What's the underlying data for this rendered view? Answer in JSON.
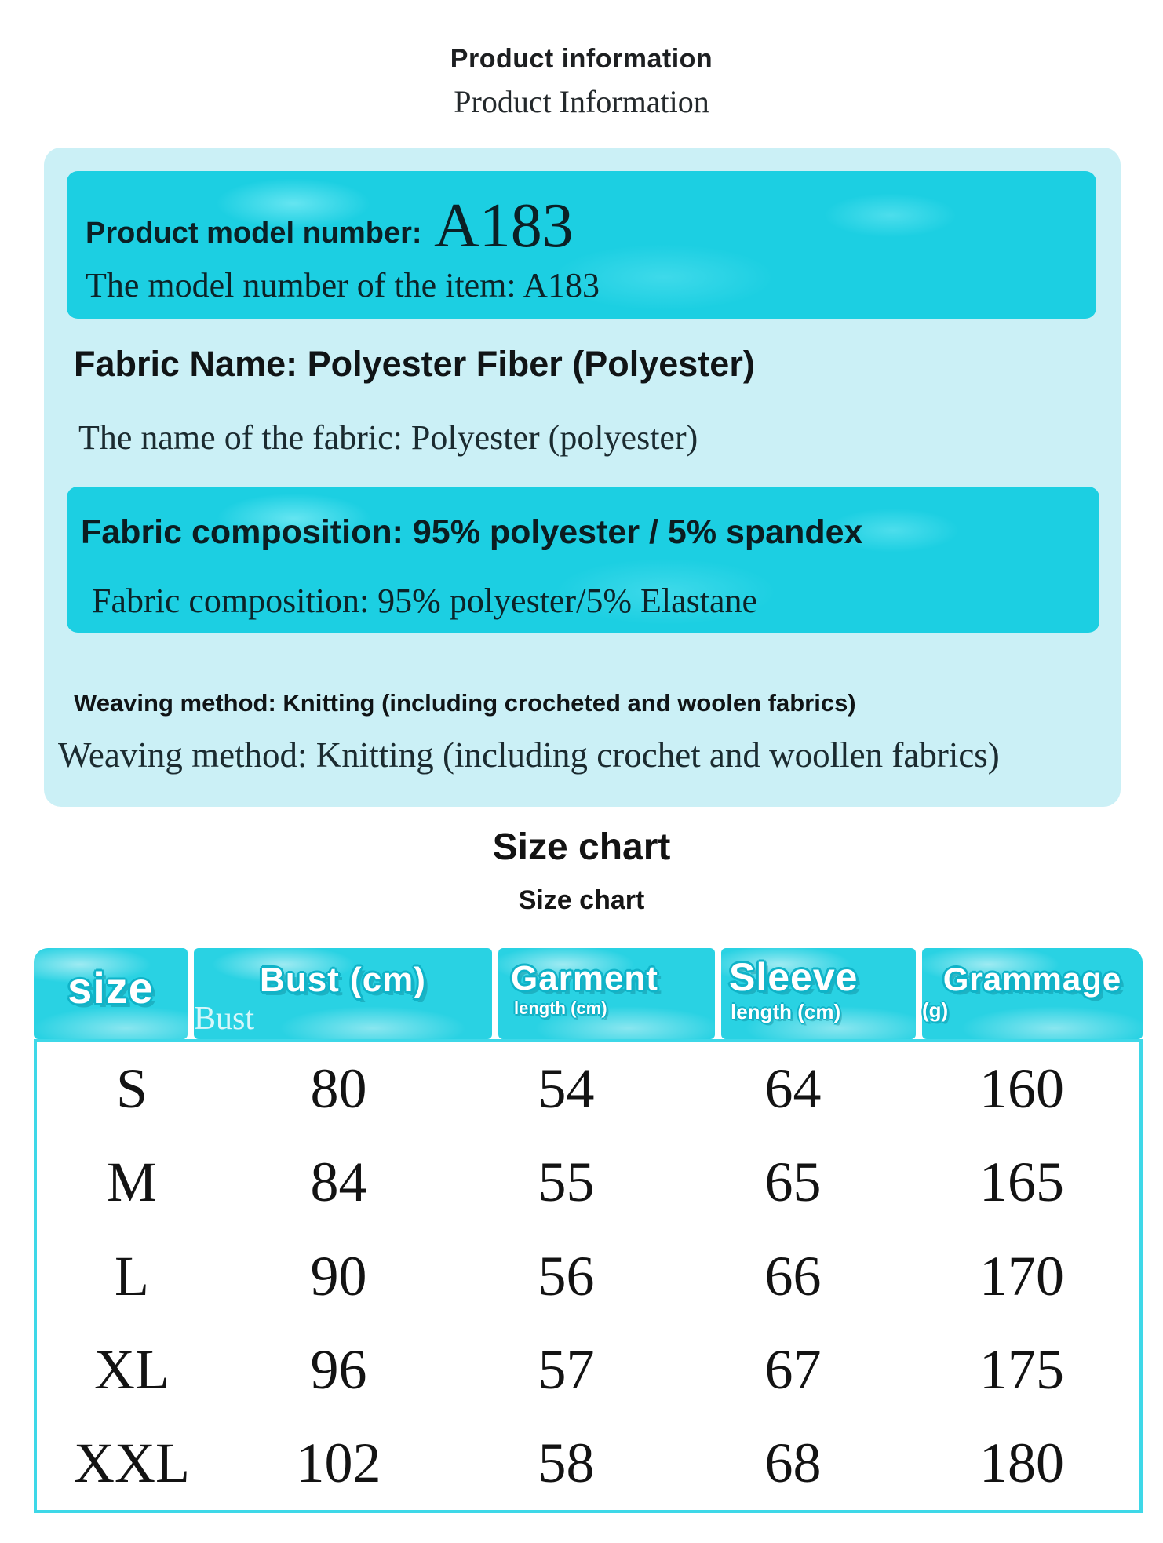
{
  "header": {
    "title": "Product information",
    "subtitle": "Product Information"
  },
  "info": {
    "model": {
      "label": "Product model number:",
      "value": "A183",
      "translation": "The model number of the item:  A183"
    },
    "fabric_name": {
      "heading": "Fabric Name: Polyester Fiber (Polyester)",
      "translation": "The name of the fabric:  Polyester (polyester)"
    },
    "composition": {
      "heading": "Fabric composition: 95% polyester / 5% spandex",
      "translation": "Fabric composition:  95% polyester/5% Elastane"
    },
    "weaving": {
      "heading": "Weaving method: Knitting (including crocheted and woolen fabrics)",
      "translation": "Weaving method:  Knitting (including crochet and woollen fabrics)"
    }
  },
  "size_chart": {
    "title": "Size chart",
    "subtitle": "Size chart",
    "columns": [
      {
        "label": "size",
        "sub": ""
      },
      {
        "label": "Bust (cm)",
        "sub": "Bust"
      },
      {
        "label": "Garment",
        "sub": "length (cm)"
      },
      {
        "label": "Sleeve",
        "sub": "length (cm)"
      },
      {
        "label": "Grammage",
        "sub": "(g)"
      }
    ],
    "rows": [
      {
        "size": "S",
        "bust": "80",
        "garment": "54",
        "sleeve": "64",
        "grammage": "160"
      },
      {
        "size": "M",
        "bust": "84",
        "garment": "55",
        "sleeve": "65",
        "grammage": "165"
      },
      {
        "size": "L",
        "bust": "90",
        "garment": "56",
        "sleeve": "66",
        "grammage": "170"
      },
      {
        "size": "XL",
        "bust": "96",
        "garment": "57",
        "sleeve": "67",
        "grammage": "175"
      },
      {
        "size": "XXL",
        "bust": "102",
        "garment": "58",
        "sleeve": "68",
        "grammage": "180"
      }
    ]
  },
  "chart_data": {
    "type": "table",
    "title": "Size chart",
    "columns": [
      "size",
      "Bust (cm)",
      "Garment length (cm)",
      "Sleeve length (cm)",
      "Grammage (g)"
    ],
    "rows": [
      [
        "S",
        "80",
        "54",
        "64",
        "160"
      ],
      [
        "M",
        "84",
        "55",
        "65",
        "165"
      ],
      [
        "L",
        "90",
        "56",
        "66",
        "170"
      ],
      [
        "XL",
        "96",
        "57",
        "67",
        "175"
      ],
      [
        "XXL",
        "102",
        "58",
        "68",
        "180"
      ]
    ]
  },
  "colors": {
    "card_background": "#cbf0f6",
    "accent_cyan": "#1ccfe2",
    "header_cyan": "#29d2e3",
    "table_border": "#3ed8e8",
    "text_dark": "#131313"
  }
}
